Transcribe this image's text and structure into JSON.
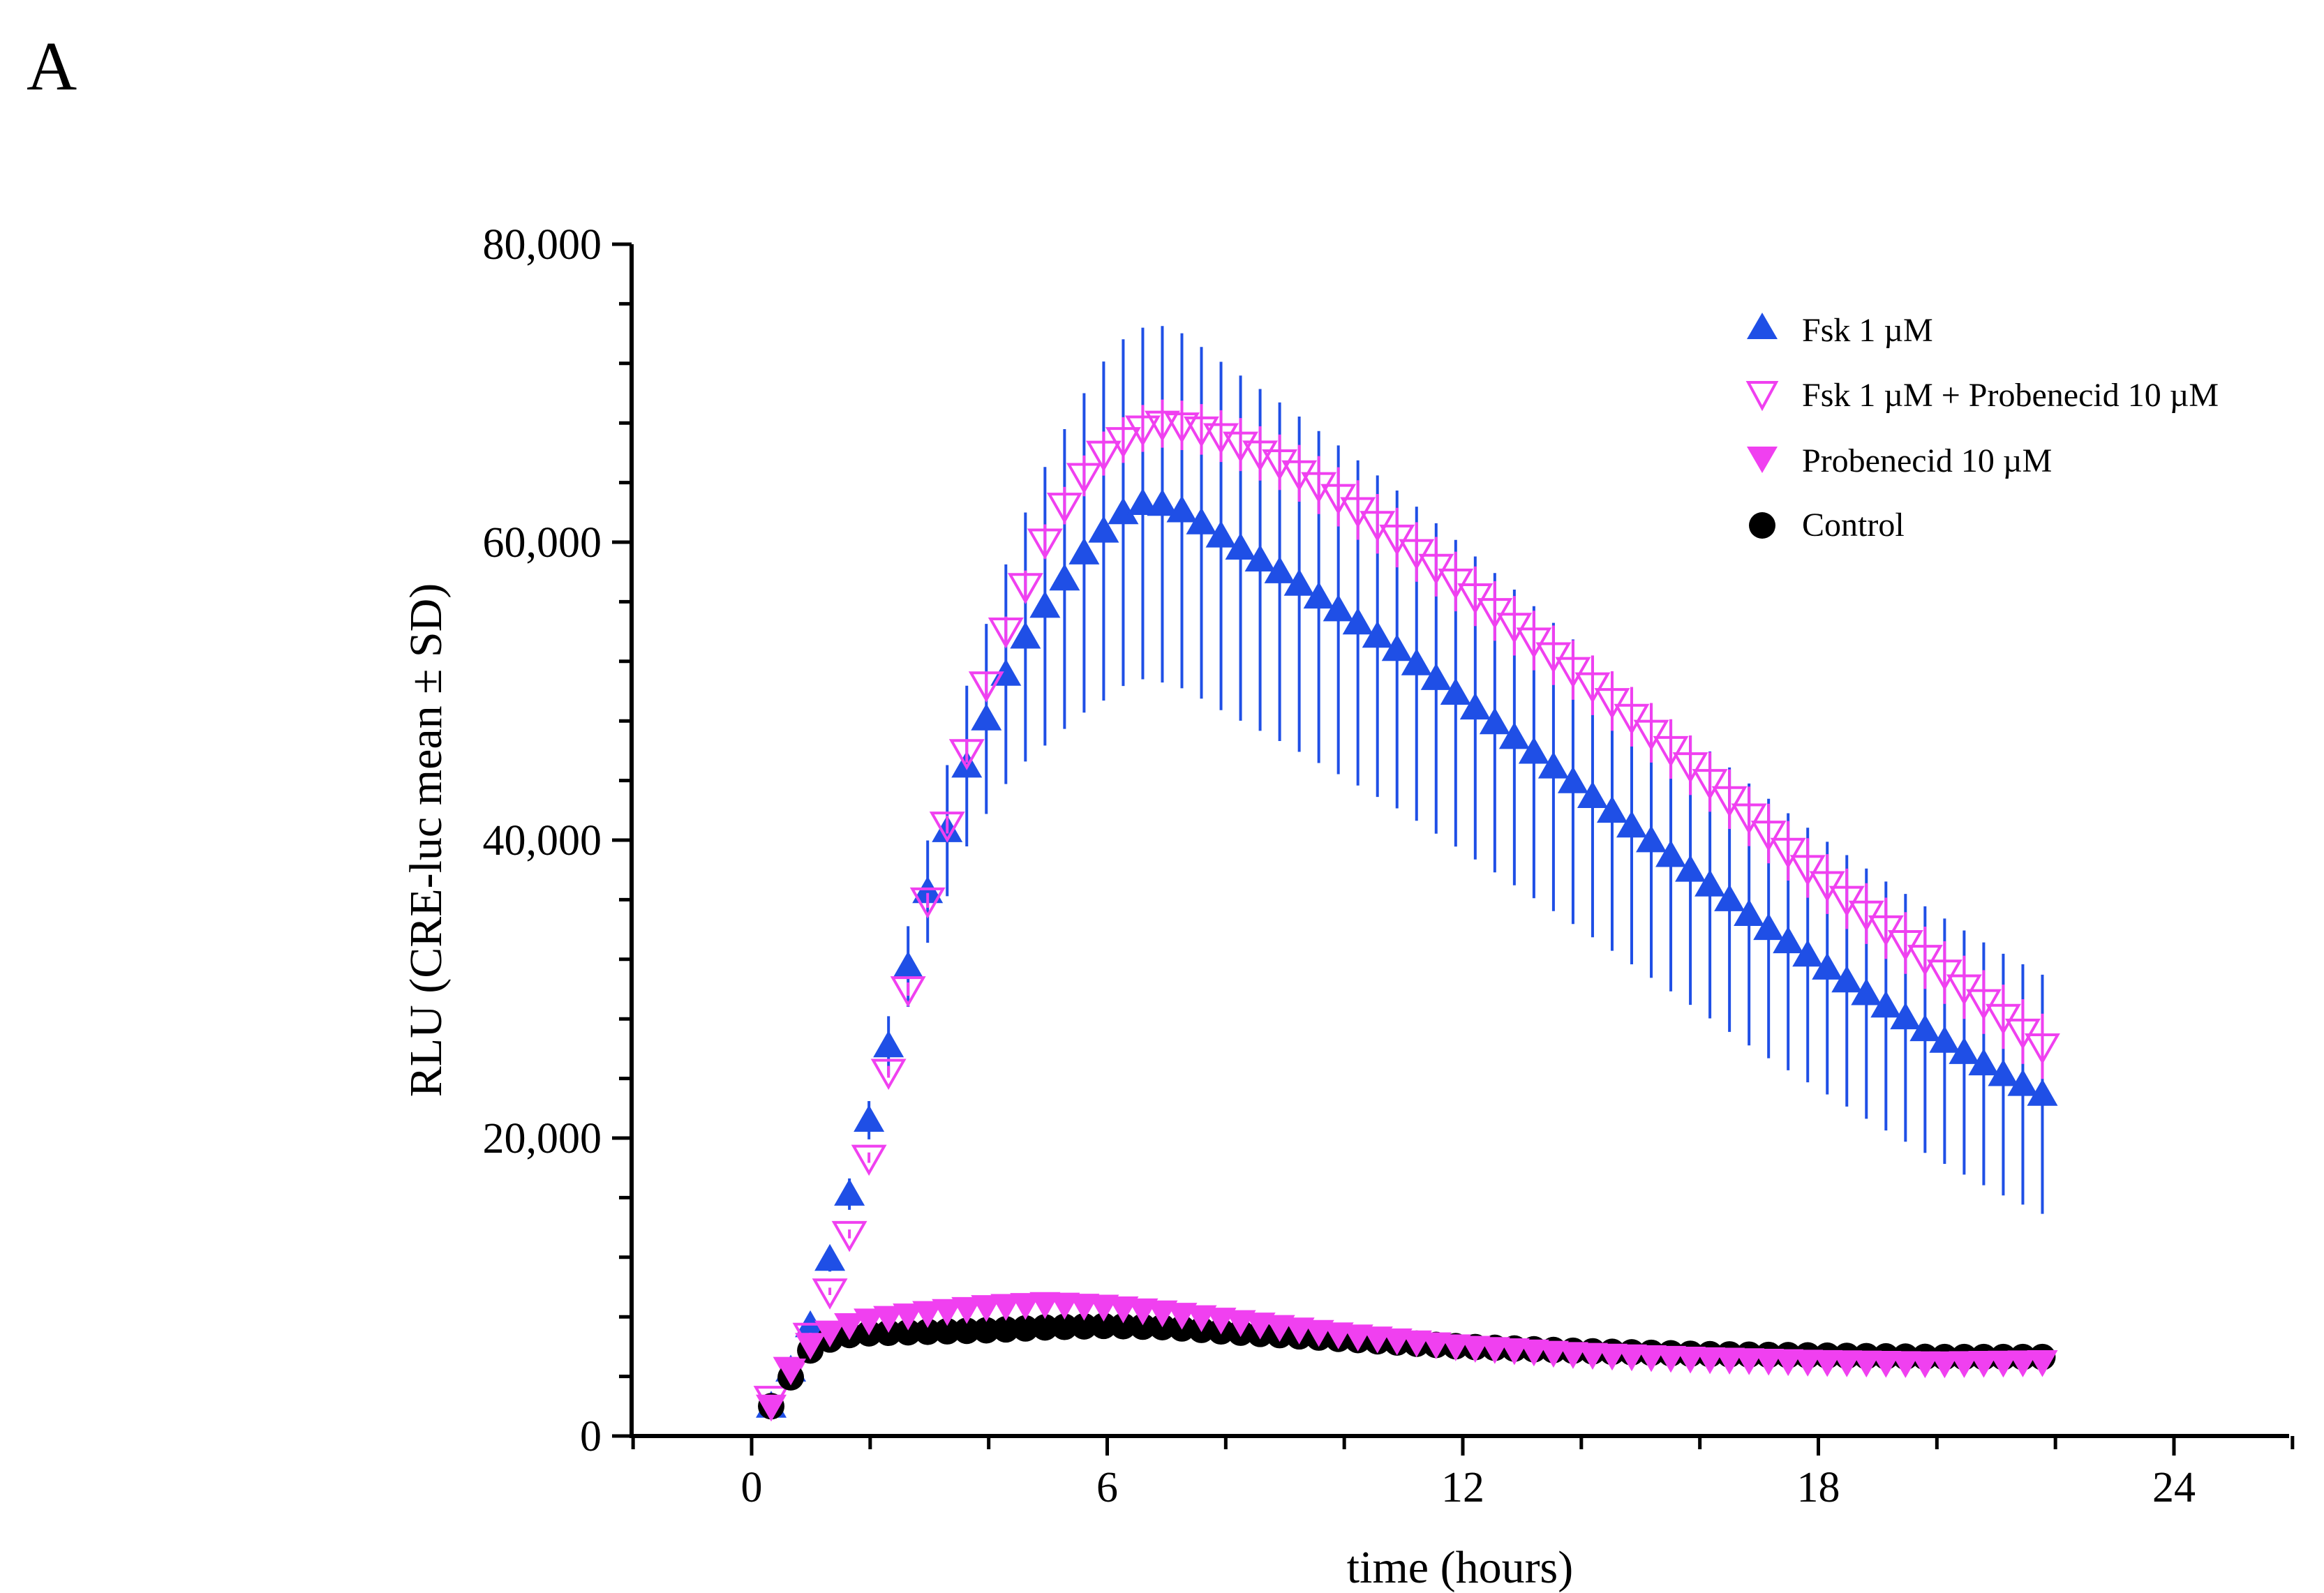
{
  "figure": {
    "panel_label": "A"
  },
  "chart_data": {
    "type": "scatter",
    "title": "",
    "xlabel": "time (hours)",
    "ylabel": "RLU (CRE-luc mean ± SD)",
    "xlim": [
      -3,
      26
    ],
    "ylim": [
      0,
      80000
    ],
    "x_ticks": [
      0,
      6,
      12,
      18,
      24
    ],
    "x_tick_labels": [
      "0",
      "6",
      "12",
      "18",
      "24"
    ],
    "y_ticks": [
      0,
      20000,
      40000,
      60000,
      80000
    ],
    "y_tick_labels": [
      "0",
      "20,000",
      "40,000",
      "60,000",
      "80,000"
    ],
    "legend_position": "top-right",
    "time_sampling": {
      "start": 0.33,
      "end": 22,
      "step": 0.33
    },
    "series": [
      {
        "name": "Fsk 1 µM",
        "marker": "triangle-up-filled",
        "color": "#1f4fe6",
        "error_bars": true,
        "anchors": [
          [
            0.33,
            2000
          ],
          [
            0.67,
            4500
          ],
          [
            1.0,
            7500
          ],
          [
            1.33,
            12000
          ],
          [
            1.67,
            16500
          ],
          [
            2.0,
            21500
          ],
          [
            2.33,
            26500
          ],
          [
            2.67,
            32000
          ],
          [
            3.0,
            37000
          ],
          [
            3.33,
            41000
          ],
          [
            3.67,
            45500
          ],
          [
            4.0,
            48500
          ],
          [
            4.33,
            51500
          ],
          [
            4.67,
            54000
          ],
          [
            5.0,
            56000
          ],
          [
            5.33,
            57800
          ],
          [
            5.67,
            59600
          ],
          [
            6.0,
            61000
          ],
          [
            6.33,
            62200
          ],
          [
            6.67,
            62700
          ],
          [
            7.0,
            62500
          ],
          [
            7.33,
            62000
          ],
          [
            8.0,
            60200
          ],
          [
            9.0,
            57800
          ],
          [
            10.0,
            55200
          ],
          [
            11.0,
            52500
          ],
          [
            12.0,
            49500
          ],
          [
            13.0,
            46500
          ],
          [
            14.0,
            43500
          ],
          [
            15.0,
            40500
          ],
          [
            16.0,
            37500
          ],
          [
            17.0,
            34500
          ],
          [
            18.0,
            31800
          ],
          [
            19.0,
            29200
          ],
          [
            20.0,
            26800
          ],
          [
            21.0,
            24500
          ],
          [
            22.0,
            22500
          ]
        ],
        "sd_anchors": [
          [
            0.33,
            200
          ],
          [
            1.0,
            600
          ],
          [
            2.0,
            1300
          ],
          [
            3.0,
            3500
          ],
          [
            4.0,
            6500
          ],
          [
            5.0,
            9500
          ],
          [
            6.0,
            11500
          ],
          [
            7.0,
            12000
          ],
          [
            10.0,
            11000
          ],
          [
            14.0,
            9500
          ],
          [
            18.0,
            8500
          ],
          [
            22.0,
            8000
          ]
        ]
      },
      {
        "name": "Fsk 1 µM + Probenecid 10 µM",
        "marker": "triangle-down-open",
        "color": "#f040f0",
        "error_bars": true,
        "anchors": [
          [
            0.33,
            2500
          ],
          [
            0.67,
            4500
          ],
          [
            1.0,
            6800
          ],
          [
            1.33,
            9800
          ],
          [
            1.67,
            13800
          ],
          [
            2.0,
            19000
          ],
          [
            2.33,
            24800
          ],
          [
            2.67,
            30500
          ],
          [
            3.0,
            36500
          ],
          [
            3.33,
            41500
          ],
          [
            3.67,
            46500
          ],
          [
            4.0,
            51000
          ],
          [
            4.33,
            54500
          ],
          [
            4.67,
            57500
          ],
          [
            5.0,
            60500
          ],
          [
            5.33,
            62800
          ],
          [
            5.67,
            64800
          ],
          [
            6.0,
            66200
          ],
          [
            6.33,
            67000
          ],
          [
            6.67,
            67800
          ],
          [
            7.0,
            68000
          ],
          [
            7.33,
            67800
          ],
          [
            7.67,
            67500
          ],
          [
            8.0,
            67000
          ],
          [
            9.0,
            65200
          ],
          [
            10.0,
            62800
          ],
          [
            11.0,
            60000
          ],
          [
            12.0,
            57000
          ],
          [
            13.0,
            54000
          ],
          [
            14.0,
            51000
          ],
          [
            15.0,
            47800
          ],
          [
            16.0,
            44500
          ],
          [
            17.0,
            41000
          ],
          [
            18.0,
            37500
          ],
          [
            19.0,
            34500
          ],
          [
            20.0,
            31500
          ],
          [
            21.0,
            28500
          ],
          [
            22.0,
            25500
          ]
        ],
        "sd_anchors": [
          [
            0.33,
            100
          ],
          [
            3.0,
            500
          ],
          [
            6.0,
            1500
          ],
          [
            10.0,
            2000
          ],
          [
            14.0,
            2000
          ],
          [
            18.0,
            2000
          ],
          [
            22.0,
            2200
          ]
        ]
      },
      {
        "name": "Probenecid 10 µM",
        "marker": "triangle-down-filled",
        "color": "#f040f0",
        "error_bars": false,
        "anchors": [
          [
            0.33,
            2000
          ],
          [
            0.67,
            4500
          ],
          [
            1.0,
            6200
          ],
          [
            1.33,
            7000
          ],
          [
            1.67,
            7500
          ],
          [
            2.0,
            7800
          ],
          [
            3.0,
            8300
          ],
          [
            4.0,
            8700
          ],
          [
            5.0,
            8900
          ],
          [
            6.0,
            8700
          ],
          [
            7.0,
            8300
          ],
          [
            8.0,
            7800
          ],
          [
            10.0,
            6800
          ],
          [
            12.0,
            6000
          ],
          [
            14.0,
            5500
          ],
          [
            16.0,
            5200
          ],
          [
            18.0,
            5000
          ],
          [
            20.0,
            4900
          ],
          [
            22.0,
            5000
          ]
        ]
      },
      {
        "name": "Control",
        "marker": "circle-filled",
        "color": "#000000",
        "error_bars": false,
        "anchors": [
          [
            0.33,
            2000
          ],
          [
            0.67,
            4000
          ],
          [
            1.0,
            5800
          ],
          [
            1.33,
            6500
          ],
          [
            1.67,
            6800
          ],
          [
            2.0,
            6900
          ],
          [
            3.0,
            7000
          ],
          [
            4.0,
            7100
          ],
          [
            5.0,
            7300
          ],
          [
            6.0,
            7400
          ],
          [
            7.0,
            7300
          ],
          [
            8.0,
            7000
          ],
          [
            10.0,
            6500
          ],
          [
            12.0,
            6000
          ],
          [
            14.0,
            5700
          ],
          [
            16.0,
            5500
          ],
          [
            18.0,
            5400
          ],
          [
            20.0,
            5300
          ],
          [
            22.0,
            5300
          ]
        ]
      }
    ]
  }
}
